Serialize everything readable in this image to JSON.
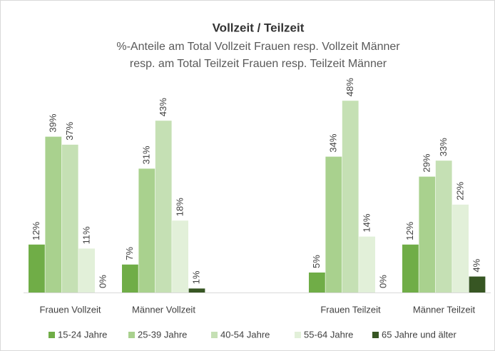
{
  "chart_data": {
    "type": "bar",
    "title": "Vollzeit / Teilzeit",
    "subtitle": [
      "%-Anteile am Total Vollzeit Frauen resp. Vollzeit Männer",
      "resp. am Total Teilzeit Frauen resp. Teilzeit Männer"
    ],
    "categories": [
      "Frauen Vollzeit",
      "Männer Vollzeit",
      null,
      "Frauen Teilzeit",
      "Männer Teilzeit"
    ],
    "series": [
      {
        "name": "15-24 Jahre",
        "color": "#70ad47",
        "values": [
          12,
          7,
          null,
          5,
          12
        ],
        "value_labels": [
          "12%",
          "7%",
          null,
          "5%",
          "12%"
        ]
      },
      {
        "name": "25-39 Jahre",
        "color": "#a9d18e",
        "values": [
          39,
          31,
          null,
          34,
          29
        ],
        "value_labels": [
          "39%",
          "31%",
          null,
          "34%",
          "29%"
        ]
      },
      {
        "name": "40-54 Jahre",
        "color": "#c5e0b4",
        "values": [
          37,
          43,
          null,
          48,
          33
        ],
        "value_labels": [
          "37%",
          "43%",
          null,
          "48%",
          "33%"
        ]
      },
      {
        "name": "55-64 Jahre",
        "color": "#e2f0d9",
        "values": [
          11,
          18,
          null,
          14,
          22
        ],
        "value_labels": [
          "11%",
          "18%",
          null,
          "14%",
          "22%"
        ]
      },
      {
        "name": "65 Jahre und älter",
        "color": "#375623",
        "values": [
          0,
          1,
          null,
          0,
          4
        ],
        "value_labels": [
          "0%",
          "1%",
          null,
          "0%",
          "4%"
        ]
      }
    ],
    "legend": "bottom"
  }
}
